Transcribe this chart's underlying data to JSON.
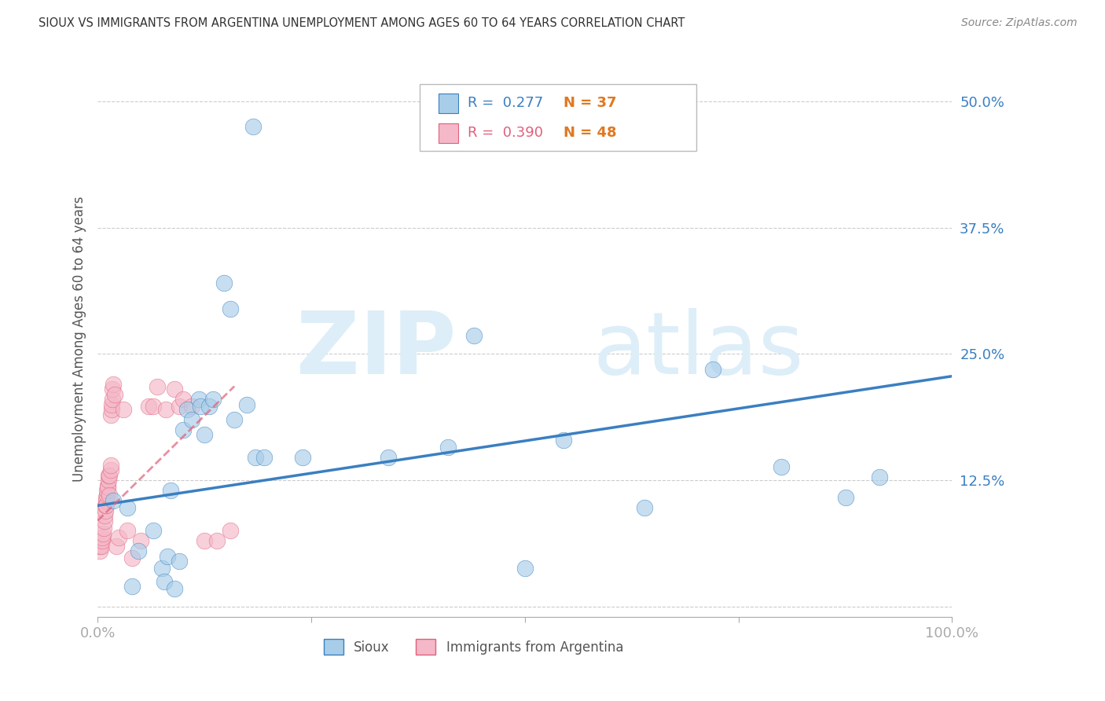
{
  "title": "SIOUX VS IMMIGRANTS FROM ARGENTINA UNEMPLOYMENT AMONG AGES 60 TO 64 YEARS CORRELATION CHART",
  "source": "Source: ZipAtlas.com",
  "ylabel": "Unemployment Among Ages 60 to 64 years",
  "watermark_zip": "ZIP",
  "watermark_atlas": "atlas",
  "xlim": [
    0,
    1.0
  ],
  "ylim": [
    -0.01,
    0.54
  ],
  "yticks": [
    0.0,
    0.125,
    0.25,
    0.375,
    0.5
  ],
  "ytick_labels": [
    "",
    "12.5%",
    "25.0%",
    "37.5%",
    "50.0%"
  ],
  "xticks": [
    0.0,
    0.25,
    0.5,
    0.75,
    1.0
  ],
  "xtick_labels": [
    "0.0%",
    "",
    "",
    "",
    "100.0%"
  ],
  "legend_r1": "0.277",
  "legend_n1": "37",
  "legend_r2": "0.390",
  "legend_n2": "48",
  "color_blue": "#a8cde8",
  "color_pink": "#f4b8c8",
  "color_blue_dark": "#3a7fc1",
  "color_pink_dark": "#e0607a",
  "color_orange": "#e07820",
  "legend_label1": "Sioux",
  "legend_label2": "Immigrants from Argentina",
  "sioux_x": [
    0.018,
    0.035,
    0.04,
    0.048,
    0.065,
    0.075,
    0.078,
    0.082,
    0.085,
    0.09,
    0.095,
    0.1,
    0.105,
    0.11,
    0.118,
    0.12,
    0.125,
    0.13,
    0.135,
    0.148,
    0.155,
    0.16,
    0.175,
    0.182,
    0.185,
    0.195,
    0.24,
    0.34,
    0.41,
    0.44,
    0.5,
    0.545,
    0.64,
    0.72,
    0.8,
    0.875,
    0.915
  ],
  "sioux_y": [
    0.105,
    0.098,
    0.02,
    0.055,
    0.075,
    0.038,
    0.025,
    0.05,
    0.115,
    0.018,
    0.045,
    0.175,
    0.195,
    0.185,
    0.205,
    0.198,
    0.17,
    0.198,
    0.205,
    0.32,
    0.295,
    0.185,
    0.2,
    0.475,
    0.148,
    0.148,
    0.148,
    0.148,
    0.158,
    0.268,
    0.038,
    0.165,
    0.098,
    0.235,
    0.138,
    0.108,
    0.128
  ],
  "argentina_x": [
    0.003,
    0.003,
    0.004,
    0.005,
    0.005,
    0.006,
    0.007,
    0.008,
    0.008,
    0.009,
    0.009,
    0.01,
    0.01,
    0.01,
    0.011,
    0.011,
    0.012,
    0.012,
    0.013,
    0.013,
    0.014,
    0.014,
    0.015,
    0.015,
    0.015,
    0.016,
    0.016,
    0.017,
    0.017,
    0.018,
    0.02,
    0.022,
    0.025,
    0.03,
    0.035,
    0.04,
    0.05,
    0.06,
    0.065,
    0.07,
    0.08,
    0.09,
    0.095,
    0.1,
    0.11,
    0.125,
    0.14,
    0.155
  ],
  "argentina_y": [
    0.055,
    0.06,
    0.06,
    0.065,
    0.068,
    0.072,
    0.078,
    0.085,
    0.09,
    0.095,
    0.1,
    0.105,
    0.108,
    0.1,
    0.11,
    0.115,
    0.12,
    0.118,
    0.125,
    0.13,
    0.11,
    0.13,
    0.135,
    0.14,
    0.19,
    0.195,
    0.2,
    0.205,
    0.215,
    0.22,
    0.21,
    0.06,
    0.068,
    0.195,
    0.075,
    0.048,
    0.065,
    0.198,
    0.198,
    0.218,
    0.195,
    0.215,
    0.198,
    0.205,
    0.198,
    0.065,
    0.065,
    0.075
  ],
  "sioux_line_x": [
    0.0,
    1.0
  ],
  "sioux_line_y": [
    0.1,
    0.228
  ],
  "argentina_line_x": [
    0.0,
    0.16
  ],
  "argentina_line_y": [
    0.085,
    0.218
  ]
}
